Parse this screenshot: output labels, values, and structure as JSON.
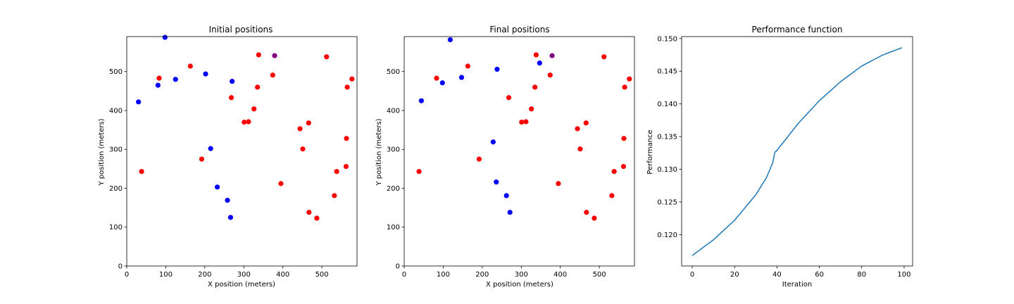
{
  "chart_data": [
    {
      "type": "scatter",
      "title": "Initial positions",
      "xlabel": "X position (meters)",
      "ylabel": "Y position (meters)",
      "xlim": [
        0,
        590
      ],
      "ylim": [
        0,
        590
      ],
      "xticks": [
        0,
        100,
        200,
        300,
        400,
        500
      ],
      "yticks": [
        0,
        100,
        200,
        300,
        400,
        500
      ],
      "series": [
        {
          "color": "#0000ff",
          "x": [
            98,
            30,
            80,
            125,
            202,
            270,
            215,
            232,
            258,
            266
          ],
          "y": [
            588,
            422,
            465,
            480,
            494,
            475,
            302,
            203,
            169,
            125
          ]
        },
        {
          "color": "#ff0000",
          "x": [
            38,
            83,
            163,
            192,
            268,
            301,
            312,
            326,
            335,
            338,
            374,
            395,
            444,
            451,
            466,
            467,
            487,
            512,
            532,
            538,
            562,
            563,
            565,
            577
          ],
          "y": [
            243,
            483,
            514,
            275,
            433,
            370,
            371,
            404,
            460,
            543,
            491,
            212,
            353,
            301,
            368,
            138,
            123,
            538,
            181,
            243,
            256,
            328,
            460,
            481
          ]
        },
        {
          "color": "#800080",
          "x": [
            379
          ],
          "y": [
            541
          ]
        }
      ]
    },
    {
      "type": "scatter",
      "title": "Final positions",
      "xlabel": "X position (meters)",
      "ylabel": "Y position (meters)",
      "xlim": [
        0,
        590
      ],
      "ylim": [
        0,
        590
      ],
      "xticks": [
        0,
        100,
        200,
        300,
        400,
        500
      ],
      "yticks": [
        0,
        100,
        200,
        300,
        400,
        500
      ],
      "series": [
        {
          "color": "#0000ff",
          "x": [
            118,
            44,
            98,
            147,
            238,
            347,
            228,
            236,
            262,
            271
          ],
          "y": [
            582,
            425,
            471,
            485,
            506,
            522,
            319,
            216,
            181,
            138
          ]
        },
        {
          "color": "#ff0000",
          "x": [
            38,
            83,
            163,
            192,
            268,
            301,
            312,
            326,
            335,
            338,
            374,
            395,
            444,
            451,
            466,
            467,
            487,
            512,
            532,
            538,
            562,
            563,
            565,
            577
          ],
          "y": [
            243,
            483,
            514,
            275,
            433,
            370,
            371,
            404,
            460,
            543,
            491,
            212,
            353,
            301,
            368,
            138,
            123,
            538,
            181,
            243,
            256,
            328,
            460,
            481
          ]
        },
        {
          "color": "#800080",
          "x": [
            379
          ],
          "y": [
            541
          ]
        }
      ]
    },
    {
      "type": "line",
      "title": "Performance function",
      "xlabel": "Iteration",
      "ylabel": "Performance",
      "xlim": [
        -5,
        104
      ],
      "ylim": [
        0.1152,
        0.1503
      ],
      "xticks": [
        0,
        20,
        40,
        60,
        80,
        100
      ],
      "yticks": [
        0.12,
        0.125,
        0.13,
        0.135,
        0.14,
        0.145,
        0.15
      ],
      "ytick_labels": [
        "0.120",
        "0.125",
        "0.130",
        "0.135",
        "0.140",
        "0.145",
        "0.150"
      ],
      "series": [
        {
          "color": "#1f77b4",
          "x": [
            0,
            10,
            20,
            30,
            35,
            38,
            39,
            40,
            50,
            60,
            70,
            80,
            90,
            99
          ],
          "y": [
            0.1168,
            0.1192,
            0.1222,
            0.1261,
            0.1287,
            0.131,
            0.1326,
            0.1329,
            0.137,
            0.1405,
            0.1434,
            0.1458,
            0.1475,
            0.1486
          ]
        }
      ]
    }
  ]
}
